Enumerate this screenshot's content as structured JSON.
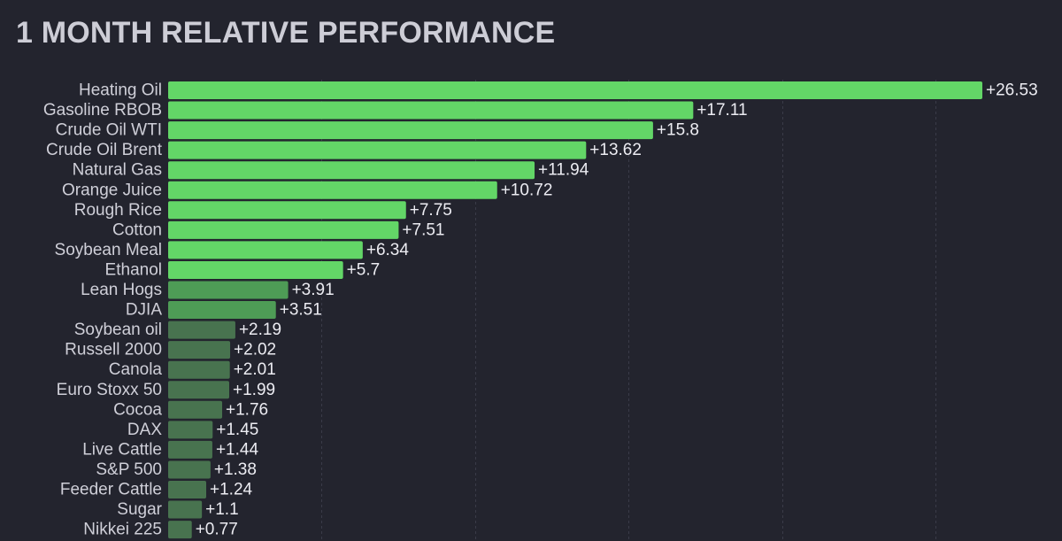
{
  "colors": {
    "background": "#23242e",
    "title": "#cdcdd6",
    "bar_strong": "#63d667",
    "bar_medium": "#4e9c56",
    "bar_weak": "#48734f",
    "grid": "#3a3b48"
  },
  "chart_data": {
    "type": "bar",
    "orientation": "horizontal",
    "title": "1 MONTH RELATIVE PERFORMANCE",
    "grid": "vertical dashed lines",
    "legend": "none",
    "categories": [
      "Heating Oil",
      "Gasoline RBOB",
      "Crude Oil WTI",
      "Crude Oil Brent",
      "Natural Gas",
      "Orange Juice",
      "Rough Rice",
      "Cotton",
      "Soybean Meal",
      "Ethanol",
      "Lean Hogs",
      "DJIA",
      "Soybean oil",
      "Russell 2000",
      "Canola",
      "Euro Stoxx 50",
      "Cocoa",
      "DAX",
      "Live Cattle",
      "S&P 500",
      "Feeder Cattle",
      "Sugar",
      "Nikkei 225"
    ],
    "values": [
      26.53,
      17.11,
      15.8,
      13.62,
      11.94,
      10.72,
      7.75,
      7.51,
      6.34,
      5.7,
      3.91,
      3.51,
      2.19,
      2.02,
      2.01,
      1.99,
      1.76,
      1.45,
      1.44,
      1.38,
      1.24,
      1.1,
      0.77
    ],
    "value_labels": [
      "+26.53",
      "+17.11",
      "+15.8",
      "+13.62",
      "+11.94",
      "+10.72",
      "+7.75",
      "+7.51",
      "+6.34",
      "+5.7",
      "+3.91",
      "+3.51",
      "+2.19",
      "+2.02",
      "+2.01",
      "+1.99",
      "+1.76",
      "+1.45",
      "+1.44",
      "+1.38",
      "+1.24",
      "+1.1",
      "+0.77"
    ],
    "xlim": [
      0,
      26.53
    ],
    "grid_x_values": [
      5,
      10,
      15,
      20,
      25
    ]
  }
}
